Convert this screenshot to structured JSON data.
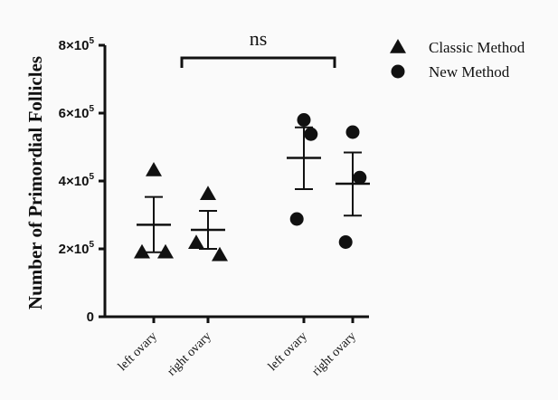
{
  "chart_data": {
    "type": "scatter",
    "ylabel": "Number of Primordial Follicles",
    "ylim": [
      0,
      800000
    ],
    "y_ticks": [
      {
        "value": 0,
        "label": "0",
        "exp": ""
      },
      {
        "value": 200000,
        "label": "2×10",
        "exp": "5"
      },
      {
        "value": 400000,
        "label": "4×10",
        "exp": "5"
      },
      {
        "value": 600000,
        "label": "6×10",
        "exp": "5"
      },
      {
        "value": 800000,
        "label": "8×10",
        "exp": "5"
      }
    ],
    "categories": [
      "left ovary",
      "right ovary",
      "left ovary",
      "right ovary"
    ],
    "series": [
      {
        "name": "Classic Method",
        "marker": "triangle",
        "groups": [
          {
            "category_index": 0,
            "values": [
              432000,
              190000,
              190000
            ],
            "mean": 271000,
            "sem_upper": 353000,
            "sem_lower": 190000
          },
          {
            "category_index": 1,
            "values": [
              362000,
              218000,
              182000
            ],
            "mean": 256000,
            "sem_upper": 312000,
            "sem_lower": 200000
          }
        ]
      },
      {
        "name": "New Method",
        "marker": "circle",
        "groups": [
          {
            "category_index": 2,
            "values": [
              580000,
              538000,
              288000
            ],
            "mean": 468000,
            "sem_upper": 558000,
            "sem_lower": 376000
          },
          {
            "category_index": 3,
            "values": [
              544000,
              410000,
              220000
            ],
            "mean": 392000,
            "sem_upper": 484000,
            "sem_lower": 298000
          }
        ]
      }
    ],
    "annotation": {
      "text": "ns",
      "from_category": 1,
      "to_category": 3
    },
    "legend_position": "top-right",
    "grid": false,
    "colors": {
      "marker": "#111111",
      "axis": "#111111",
      "background": "#fafafa"
    }
  }
}
